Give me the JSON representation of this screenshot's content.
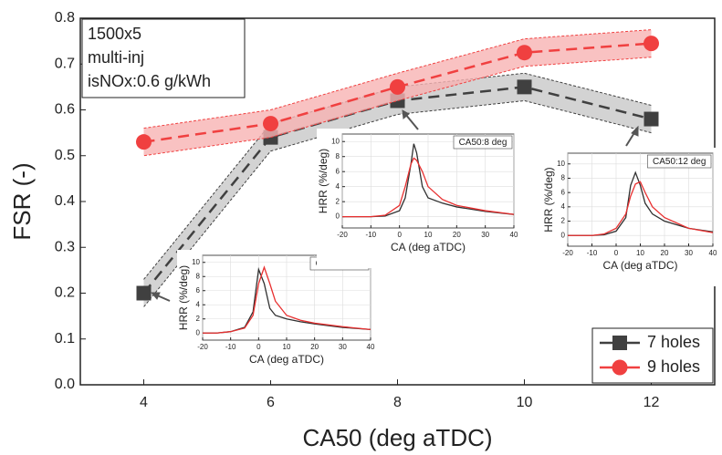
{
  "chart_data": [
    {
      "type": "line",
      "x_label": "CA50 (deg aTDC)",
      "y_label": "FSR (-)",
      "annotations": [
        "1500x5",
        "multi-inj",
        "isNOx:0.6 g/kWh"
      ],
      "x": [
        4,
        6,
        8,
        10,
        12
      ],
      "series": [
        {
          "name": "7 holes",
          "color": "#404040",
          "band_color": "#c8c8c8",
          "marker": "square",
          "values": [
            0.2,
            0.54,
            0.62,
            0.65,
            0.58
          ],
          "errors": [
            0.03,
            0.03,
            0.03,
            0.03,
            0.03
          ]
        },
        {
          "name": "9 holes",
          "color": "#f04040",
          "band_color": "#f7b3b3",
          "marker": "circle",
          "values": [
            0.53,
            0.57,
            0.65,
            0.725,
            0.745
          ],
          "errors": [
            0.03,
            0.03,
            0.03,
            0.03,
            0.03
          ]
        }
      ],
      "xlim": [
        3,
        13
      ],
      "ylim": [
        0,
        0.8
      ],
      "xticks": [
        4,
        6,
        8,
        10,
        12
      ],
      "yticks": [
        {
          "value": 0,
          "label": "0.0"
        },
        0.1,
        0.2,
        0.3,
        0.4,
        0.5,
        0.6,
        0.7,
        0.8
      ],
      "dashed": true,
      "legend": "bottom-right"
    },
    {
      "type": "line",
      "title": "CA50:4 deg",
      "x_label": "CA (deg aTDC)",
      "y_label": "HRR (%/deg)",
      "series": [
        {
          "color": "#303030",
          "x": [
            -20,
            -15,
            -10,
            -5,
            -2,
            0,
            2,
            4,
            6,
            10,
            15,
            20,
            30,
            40
          ],
          "values": [
            0,
            0,
            0.2,
            0.8,
            3,
            9,
            7,
            3.5,
            2.5,
            2,
            1.6,
            1.3,
            0.8,
            0.5
          ]
        },
        {
          "color": "#e83030",
          "x": [
            -20,
            -15,
            -10,
            -5,
            -2,
            0,
            2,
            4,
            6,
            10,
            15,
            20,
            30,
            40
          ],
          "values": [
            0,
            0,
            0.2,
            0.7,
            2.5,
            7,
            9.3,
            7,
            4.5,
            2.5,
            1.8,
            1.4,
            0.9,
            0.5
          ]
        }
      ],
      "xlim": [
        -20,
        40
      ],
      "ylim": [
        -1,
        11
      ],
      "xticks": [
        -20,
        -10,
        0,
        10,
        20,
        30,
        40
      ],
      "yticks": [
        0,
        2,
        4,
        6,
        8,
        10
      ]
    },
    {
      "type": "line",
      "title": "CA50:8 deg",
      "x_label": "CA (deg aTDC)",
      "y_label": "HRR (%/deg)",
      "series": [
        {
          "color": "#303030",
          "x": [
            -20,
            -10,
            -5,
            0,
            2,
            4,
            5,
            6,
            8,
            10,
            15,
            20,
            30,
            40
          ],
          "values": [
            0,
            0,
            0.1,
            0.8,
            2.5,
            7,
            9.7,
            8.5,
            4,
            2.5,
            1.8,
            1.3,
            0.7,
            0.3
          ]
        },
        {
          "color": "#e83030",
          "x": [
            -20,
            -10,
            -5,
            0,
            2,
            4,
            5,
            6,
            8,
            10,
            15,
            20,
            30,
            40
          ],
          "values": [
            0,
            0,
            0.2,
            1.5,
            4,
            7,
            7.8,
            7.5,
            6,
            4,
            2.3,
            1.5,
            0.8,
            0.3
          ]
        }
      ],
      "xlim": [
        -20,
        40
      ],
      "ylim": [
        -1.5,
        11
      ],
      "xticks": [
        -20,
        -10,
        0,
        10,
        20,
        30,
        40
      ],
      "yticks": [
        0,
        2,
        4,
        6,
        8,
        10
      ]
    },
    {
      "type": "line",
      "title": "CA50:12 deg",
      "x_label": "CA (deg aTDC)",
      "y_label": "HRR (%/deg)",
      "series": [
        {
          "color": "#303030",
          "x": [
            -20,
            -10,
            -5,
            0,
            4,
            6,
            8,
            10,
            12,
            15,
            20,
            30,
            40
          ],
          "values": [
            0,
            0,
            0.1,
            0.6,
            2.5,
            7,
            8.8,
            7,
            4.5,
            3,
            2,
            1,
            0.5
          ]
        },
        {
          "color": "#e83030",
          "x": [
            -20,
            -10,
            -5,
            0,
            4,
            6,
            8,
            10,
            12,
            15,
            20,
            30,
            40
          ],
          "values": [
            0,
            0,
            0.2,
            1,
            3,
            5.5,
            7.2,
            7.5,
            6,
            4,
            2.5,
            1,
            0.4
          ]
        }
      ],
      "xlim": [
        -20,
        40
      ],
      "ylim": [
        -1.5,
        11.5
      ],
      "xticks": [
        -20,
        -10,
        0,
        10,
        20,
        30,
        40
      ],
      "yticks": [
        0,
        2,
        4,
        6,
        8,
        10
      ]
    }
  ]
}
